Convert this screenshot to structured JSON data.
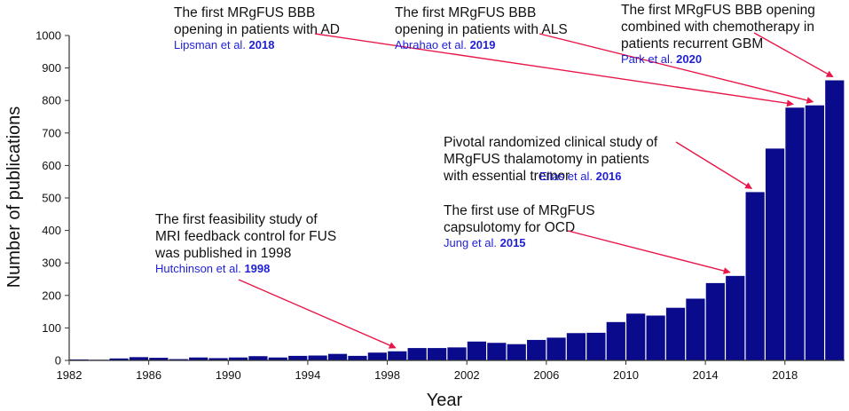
{
  "chart_data": {
    "type": "bar",
    "title": "",
    "xlabel": "Year",
    "ylabel": "Number of publications",
    "ylim": [
      0,
      1000
    ],
    "xlim": [
      1982,
      2020
    ],
    "yticks": [
      0,
      100,
      200,
      300,
      400,
      500,
      600,
      700,
      800,
      900,
      1000
    ],
    "xticks": [
      1982,
      1986,
      1990,
      1994,
      1998,
      2002,
      2006,
      2010,
      2014,
      2018
    ],
    "bar_color": "#0a0a8c",
    "categories": [
      1982,
      1983,
      1984,
      1985,
      1986,
      1987,
      1988,
      1989,
      1990,
      1991,
      1992,
      1993,
      1994,
      1995,
      1996,
      1997,
      1998,
      1999,
      2000,
      2001,
      2002,
      2003,
      2004,
      2005,
      2006,
      2007,
      2008,
      2009,
      2010,
      2011,
      2012,
      2013,
      2014,
      2015,
      2016,
      2017,
      2018,
      2019,
      2020
    ],
    "values": [
      3,
      2,
      6,
      10,
      8,
      4,
      9,
      7,
      9,
      13,
      9,
      14,
      15,
      20,
      14,
      24,
      28,
      38,
      38,
      40,
      58,
      54,
      50,
      63,
      70,
      84,
      85,
      118,
      144,
      138,
      162,
      190,
      238,
      260,
      518,
      652,
      778,
      785,
      862
    ],
    "annotations": [
      {
        "lines": [
          "The first feasibility study of",
          "MRI feedback control for FUS",
          "was published in 1998"
        ],
        "cite_author": "Hutchinson et al.",
        "cite_year": "1998",
        "target": 1998
      },
      {
        "lines": [
          "The first use of MRgFUS",
          "capsulotomy for OCD"
        ],
        "cite_author": "Jung et al.",
        "cite_year": "2015",
        "target": 2015
      },
      {
        "lines": [
          "Pivotal randomized clinical study of",
          "MRgFUS thalamotomy in patients",
          "with essential tremor"
        ],
        "cite_author": "Elias et al.",
        "cite_year": "2016",
        "target": 2016
      },
      {
        "lines": [
          "The first MRgFUS BBB",
          "opening in patients with AD"
        ],
        "cite_author": "Lipsman et al.",
        "cite_year": "2018",
        "target": 2018
      },
      {
        "lines": [
          "The first MRgFUS BBB",
          "opening in patients with ALS"
        ],
        "cite_author": "Abrahao et al.",
        "cite_year": "2019",
        "target": 2019
      },
      {
        "lines": [
          "The first MRgFUS BBB opening",
          "combined with chemotherapy in",
          "patients recurrent GBM"
        ],
        "cite_author": "Park et al.",
        "cite_year": "2020",
        "target": 2020
      }
    ]
  }
}
